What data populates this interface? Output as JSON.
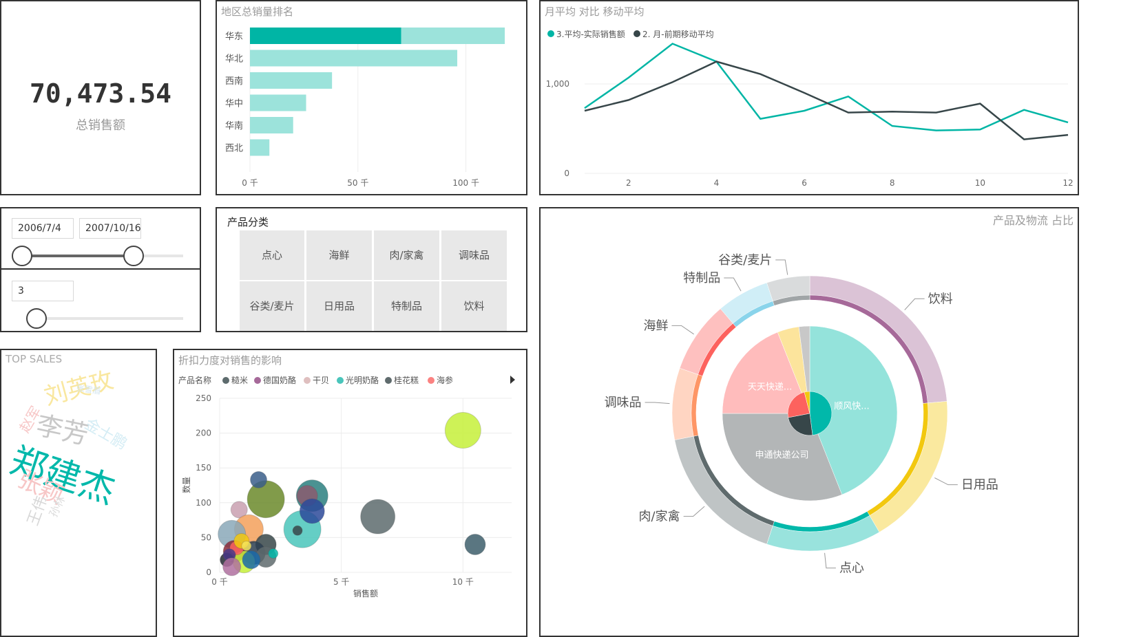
{
  "kpi": {
    "value": "70,473.54",
    "label": "总销售额"
  },
  "region_chart": {
    "title": "地区总销量排名",
    "chart_data": {
      "type": "bar",
      "orientation": "horizontal",
      "categories": [
        "华东",
        "华北",
        "西南",
        "华中",
        "华南",
        "西北"
      ],
      "values": [
        118,
        96,
        38,
        26,
        20,
        9
      ],
      "highlight": {
        "category": "华东",
        "value": 70
      },
      "xlim": [
        0,
        125
      ],
      "xticks": [
        0,
        50,
        100
      ],
      "xtick_labels": [
        "0 千",
        "50 千",
        "100 千"
      ],
      "colors": {
        "bar": "#9ce3db",
        "highlight": "#00b5a5"
      }
    }
  },
  "line_chart": {
    "title": "月平均 对比 移动平均",
    "chart_data": {
      "type": "line",
      "x": [
        1,
        2,
        3,
        4,
        5,
        6,
        7,
        8,
        9,
        10,
        11,
        12
      ],
      "series": [
        {
          "name": "3.平均-实际销售额",
          "color": "#00b5a5",
          "values": [
            730,
            1070,
            1450,
            1250,
            610,
            700,
            860,
            530,
            480,
            490,
            710,
            570
          ]
        },
        {
          "name": "2. 月-前期移动平均",
          "color": "#374649",
          "values": [
            700,
            820,
            1020,
            1250,
            1110,
            900,
            680,
            690,
            680,
            780,
            380,
            430
          ]
        }
      ],
      "ylim": [
        0,
        1500
      ],
      "yticks": [
        0,
        1000
      ],
      "ytick_labels": [
        "0",
        "1,000"
      ],
      "xticks": [
        2,
        4,
        6,
        8,
        10,
        12
      ],
      "xtick_labels": [
        "2",
        "4",
        "6",
        "8",
        "10",
        "12"
      ]
    }
  },
  "date_slicer": {
    "start": "2006/7/4",
    "end": "2007/10/16",
    "start_pos": 0.0,
    "end_pos": 0.68
  },
  "num_slicer": {
    "value": "3",
    "pos": 0.0
  },
  "category_slicer": {
    "title": "产品分类",
    "items": [
      "点心",
      "海鲜",
      "肉/家禽",
      "调味品",
      "谷类/麦片",
      "日用品",
      "特制品",
      "饮料"
    ]
  },
  "wordcloud": {
    "title": "TOP SALES",
    "words": [
      "郑建杰",
      "李芳",
      "刘英玫",
      "张颖",
      "金士鹏",
      "赵军",
      "王伟",
      "孙林",
      "张雪眉"
    ]
  },
  "scatter": {
    "title": "折扣力度对销售的影响",
    "legend_title": "产品名称",
    "legend_items": [
      {
        "name": "糙米",
        "color": "#5d6b6d"
      },
      {
        "name": "德国奶酪",
        "color": "#a66999"
      },
      {
        "name": "干贝",
        "color": "#dfbfbf"
      },
      {
        "name": "光明奶酪",
        "color": "#4ac5bb"
      },
      {
        "name": "桂花糕",
        "color": "#5f6b6d"
      },
      {
        "name": "海参",
        "color": "#fb8281"
      }
    ],
    "chart_data": {
      "type": "scatter",
      "xlabel": "销售额",
      "ylabel": "数量",
      "xlim": [
        0,
        12
      ],
      "ylim": [
        0,
        250
      ],
      "xticks": [
        0,
        5,
        10
      ],
      "xtick_labels": [
        "0 千",
        "5 千",
        "10 千"
      ],
      "yticks": [
        0,
        50,
        100,
        150,
        200,
        250
      ],
      "ytick_labels": [
        "0",
        "50",
        "100",
        "150",
        "200",
        "250"
      ],
      "points": [
        {
          "x": 10.0,
          "y": 204,
          "r": 26,
          "color": "#c5f03a"
        },
        {
          "x": 6.5,
          "y": 80,
          "r": 25,
          "color": "#5d6b6d"
        },
        {
          "x": 10.5,
          "y": 40,
          "r": 15,
          "color": "#3d5e6b"
        },
        {
          "x": 3.4,
          "y": 62,
          "r": 27,
          "color": "#4ac5bb"
        },
        {
          "x": 3.8,
          "y": 110,
          "r": 23,
          "color": "#2a7f7f"
        },
        {
          "x": 3.6,
          "y": 110,
          "r": 15,
          "color": "#8a5a6e"
        },
        {
          "x": 3.8,
          "y": 88,
          "r": 18,
          "color": "#2d4a9a"
        },
        {
          "x": 1.9,
          "y": 105,
          "r": 27,
          "color": "#6b8a2a"
        },
        {
          "x": 1.6,
          "y": 133,
          "r": 12,
          "color": "#3a5e8a"
        },
        {
          "x": 0.8,
          "y": 90,
          "r": 12,
          "color": "#c9a0b0"
        },
        {
          "x": 1.2,
          "y": 62,
          "r": 21,
          "color": "#f3a05a"
        },
        {
          "x": 0.5,
          "y": 55,
          "r": 20,
          "color": "#8aa8b8"
        },
        {
          "x": 1.9,
          "y": 40,
          "r": 15,
          "color": "#374649"
        },
        {
          "x": 1.4,
          "y": 28,
          "r": 17,
          "color": "#2c3e50"
        },
        {
          "x": 1.9,
          "y": 22,
          "r": 15,
          "color": "#5f6b6d"
        },
        {
          "x": 2.2,
          "y": 27,
          "r": 7,
          "color": "#01b8aa"
        },
        {
          "x": 0.6,
          "y": 30,
          "r": 16,
          "color": "#8a2a3a"
        },
        {
          "x": 1.0,
          "y": 15,
          "r": 16,
          "color": "#c5f03a"
        },
        {
          "x": 0.3,
          "y": 18,
          "r": 10,
          "color": "#222831"
        },
        {
          "x": 0.7,
          "y": 35,
          "r": 10,
          "color": "#fd625e"
        },
        {
          "x": 0.4,
          "y": 25,
          "r": 9,
          "color": "#4a3a8a"
        },
        {
          "x": 1.3,
          "y": 18,
          "r": 13,
          "color": "#1a6aa8"
        },
        {
          "x": 0.9,
          "y": 45,
          "r": 11,
          "color": "#f2c80f"
        },
        {
          "x": 3.2,
          "y": 60,
          "r": 7,
          "color": "#374649"
        },
        {
          "x": 0.5,
          "y": 8,
          "r": 13,
          "color": "#b070a0"
        },
        {
          "x": 1.1,
          "y": 38,
          "r": 7,
          "color": "#f5e35a"
        }
      ]
    }
  },
  "donut": {
    "title": "产品及物流 占比",
    "chart_data": {
      "type": "pie",
      "outer": [
        {
          "name": "饮料",
          "value": 21.0,
          "color": "#a66999"
        },
        {
          "name": "日用品",
          "value": 16.0,
          "color": "#f2c80f"
        },
        {
          "name": "点心",
          "value": 12.0,
          "color": "#01b8aa"
        },
        {
          "name": "肉/家禽",
          "value": 15.0,
          "color": "#5f6b6d"
        },
        {
          "name": "调味品",
          "value": 7.5,
          "color": "#fe9666"
        },
        {
          "name": "海鲜",
          "value": 7.5,
          "color": "#fd625e"
        },
        {
          "name": "特制品",
          "value": 5.5,
          "color": "#8ad4eb"
        },
        {
          "name": "谷类/麦片",
          "value": 4.5,
          "color": "#a0a5a7"
        }
      ],
      "inner": [
        {
          "name": "顺风快...",
          "value": 44,
          "color": "#94e3db"
        },
        {
          "name": "申通快递公司",
          "value": 31,
          "color": "#b3b6b7"
        },
        {
          "name": "天天快递...",
          "value": 19,
          "color": "#ffbcbc"
        },
        {
          "name": "",
          "value": 4,
          "color": "#fce49c"
        },
        {
          "name": "",
          "value": 2,
          "color": "#c8c8c8"
        }
      ],
      "core": [
        {
          "value": 48,
          "color": "#01b8aa"
        },
        {
          "value": 24,
          "color": "#374649"
        },
        {
          "value": 24,
          "color": "#fd625e"
        },
        {
          "value": 4,
          "color": "#f2c80f"
        }
      ]
    }
  }
}
